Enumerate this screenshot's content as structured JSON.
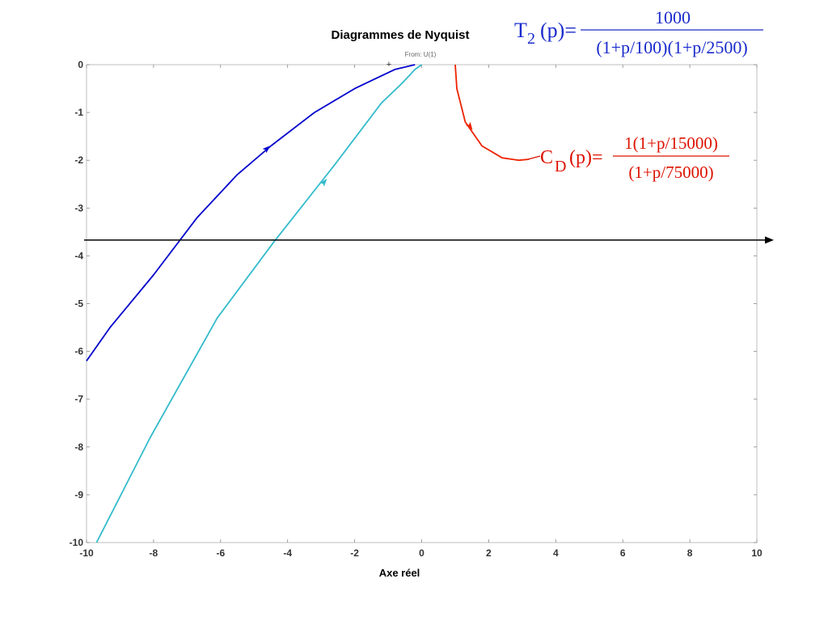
{
  "chart_data": {
    "type": "line",
    "title": "Diagrammes de Nyquist",
    "subtitle": "From: U(1)",
    "xlabel": "Axe réel",
    "ylabel": "",
    "xlim": [
      -10,
      10
    ],
    "ylim": [
      -10,
      0
    ],
    "xticks": [
      "-10",
      "-8",
      "-6",
      "-4",
      "-2",
      "0",
      "2",
      "4",
      "6",
      "8",
      "10"
    ],
    "yticks": [
      "0",
      "-1",
      "-2",
      "-3",
      "-4",
      "-5",
      "-6",
      "-7",
      "-8",
      "-9",
      "-10"
    ],
    "grid": false,
    "series": [
      {
        "color": "#0000cc",
        "points": [
          [
            -10,
            -6.2
          ],
          [
            -9.3,
            -5.5
          ],
          [
            -8,
            -4.4
          ],
          [
            -6.7,
            -3.2
          ],
          [
            -5.5,
            -2.3
          ],
          [
            -4.5,
            -1.7
          ],
          [
            -3.2,
            -1.0
          ],
          [
            -2,
            -0.5
          ],
          [
            -1.4,
            -0.3
          ],
          [
            -0.8,
            -0.1
          ],
          [
            -0.2,
            0.0
          ]
        ],
        "arrow_at": [
          -4.6,
          -1.75
        ]
      },
      {
        "color": "#33bbcc",
        "points": [
          [
            -9.7,
            -10
          ],
          [
            -8.1,
            -7.8
          ],
          [
            -6.1,
            -5.3
          ],
          [
            -4.4,
            -3.7
          ],
          [
            -2.6,
            -2.1
          ],
          [
            -1.2,
            -0.8
          ],
          [
            -0.6,
            -0.4
          ],
          [
            -0.2,
            -0.1
          ],
          [
            0,
            0.0
          ]
        ],
        "arrow_at": [
          -2.9,
          -2.45
        ]
      },
      {
        "color": "#ee2200",
        "points": [
          [
            1.0,
            0.0
          ],
          [
            1.05,
            -0.5
          ],
          [
            1.3,
            -1.2
          ],
          [
            1.8,
            -1.7
          ],
          [
            2.4,
            -1.95
          ],
          [
            2.9,
            -2.0
          ],
          [
            3.2,
            -1.98
          ]
        ],
        "arrow_at": [
          1.45,
          -1.3
        ]
      }
    ],
    "reference_line": {
      "color": "#000000",
      "y": -3.67
    },
    "annotations": {
      "t2": {
        "color": "#1a2bcc",
        "name": "T",
        "sub": "2",
        "arg": "(p)=",
        "numerator": "1000",
        "denominator": "(1+p/100)(1+p/2500)"
      },
      "cd": {
        "color": "#dd1100",
        "name": "C",
        "sub": "D",
        "arg": "(p)=",
        "numerator": "1(1+p/15000)",
        "denominator": "(1+p/75000)"
      }
    },
    "origin_marker": "+"
  }
}
